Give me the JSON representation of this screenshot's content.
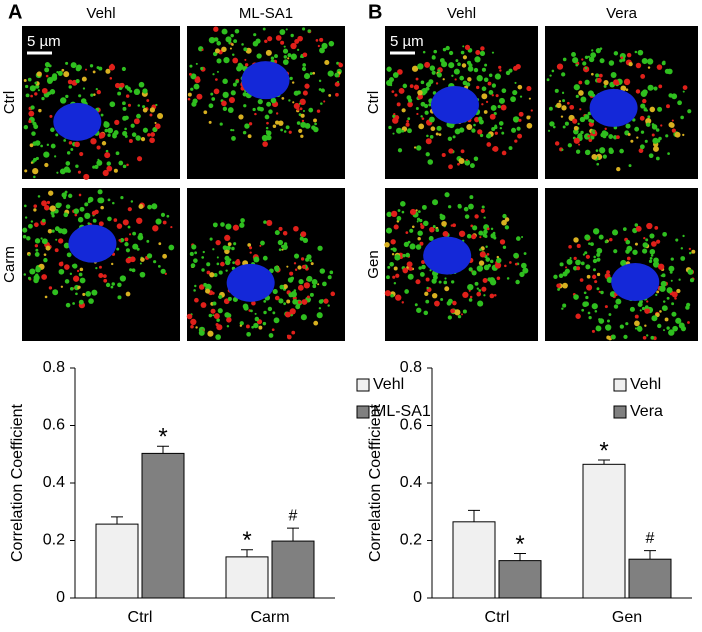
{
  "figure": {
    "panels": [
      {
        "label": "A",
        "columns": [
          "Vehl",
          "ML-SA1"
        ],
        "rows": [
          "Ctrl",
          "Carm"
        ],
        "scale_bar": "5 µm"
      },
      {
        "label": "B",
        "columns": [
          "Vehl",
          "Vera"
        ],
        "rows": [
          "Ctrl",
          "Gen"
        ],
        "scale_bar": "5 µm"
      }
    ]
  },
  "chart_data": [
    {
      "type": "bar",
      "y_label": "Correlation Coefficient",
      "categories": [
        "Ctrl",
        "Carm"
      ],
      "series": [
        {
          "name": "Vehl",
          "color": "#f0f0f0",
          "values": [
            0.257,
            0.143
          ],
          "errors": [
            0.025,
            0.025
          ],
          "annotations": [
            null,
            "*"
          ]
        },
        {
          "name": "ML-SA1",
          "color": "#808080",
          "values": [
            0.503,
            0.198
          ],
          "errors": [
            0.025,
            0.045
          ],
          "annotations": [
            "*",
            "#"
          ]
        }
      ],
      "ylim": [
        0,
        0.8
      ],
      "yticks": [
        0,
        0.2,
        0.4,
        0.6,
        0.8
      ],
      "legend": "top-right",
      "grid": false
    },
    {
      "type": "bar",
      "y_label": "Correlation Coefficient",
      "categories": [
        "Ctrl",
        "Gen"
      ],
      "series": [
        {
          "name": "Vehl",
          "color": "#f0f0f0",
          "values": [
            0.265,
            0.465
          ],
          "errors": [
            0.04,
            0.015
          ],
          "annotations": [
            null,
            "*"
          ]
        },
        {
          "name": "Vera",
          "color": "#808080",
          "values": [
            0.13,
            0.135
          ],
          "errors": [
            0.025,
            0.03
          ],
          "annotations": [
            "*",
            "#"
          ]
        }
      ],
      "ylim": [
        0,
        0.8
      ],
      "yticks": [
        0,
        0.2,
        0.4,
        0.6,
        0.8
      ],
      "legend": "top-right",
      "grid": false
    }
  ]
}
